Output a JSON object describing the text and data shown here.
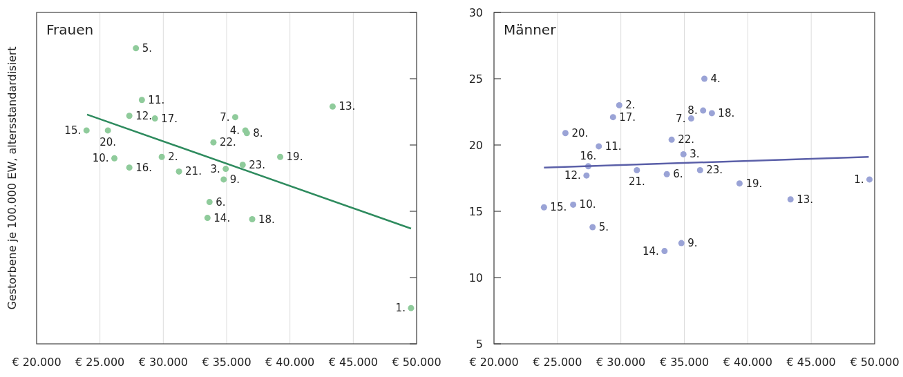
{
  "chart_data": [
    {
      "type": "scatter",
      "title": "Frauen",
      "ylabel": "Gestorbene je 100.000 EW, altersstandardisiert",
      "xlim": [
        20000,
        50000
      ],
      "ylim": [
        5,
        30
      ],
      "xticks": [
        {
          "value": 20000,
          "label": "€ 20.000"
        },
        {
          "value": 25000,
          "label": "€ 25.000"
        },
        {
          "value": 30000,
          "label": "€ 30.000"
        },
        {
          "value": 35000,
          "label": "€ 35.000"
        },
        {
          "value": 40000,
          "label": "€ 40.000"
        },
        {
          "value": 45000,
          "label": "€ 45.000"
        },
        {
          "value": 50000,
          "label": "€ 50.000"
        }
      ],
      "yticks": [
        5,
        10,
        15,
        20,
        25,
        30
      ],
      "tick_labels": "x",
      "grid": "x",
      "series": [
        {
          "marker": "circle",
          "color": "#8fcb9b",
          "x": [
            49560,
            29880,
            34930,
            36480,
            27840,
            33650,
            35680,
            36600,
            34770,
            26140,
            28310,
            27320,
            43370,
            33490,
            23940,
            27320,
            29340,
            37020,
            39230,
            25630,
            31240,
            33960,
            36270
          ],
          "values": [
            7.7,
            19.1,
            18.2,
            21.1,
            27.3,
            15.7,
            22.1,
            20.9,
            17.4,
            19.0,
            23.4,
            22.2,
            22.9,
            14.5,
            21.1,
            18.3,
            22.0,
            14.4,
            19.1,
            21.1,
            18.0,
            20.2,
            18.5
          ]
        },
        {
          "type": "line",
          "color": "#2e8b5e",
          "x": [
            23980,
            49560
          ],
          "values": [
            22.3,
            13.7
          ]
        }
      ],
      "annotations": [
        {
          "text": "1.",
          "x": 49560,
          "y": 7.7
        },
        {
          "text": "2.",
          "x": 29880,
          "y": 19.1
        },
        {
          "text": "3.",
          "x": 34930,
          "y": 18.2
        },
        {
          "text": "4.",
          "x": 36480,
          "y": 21.1
        },
        {
          "text": "5.",
          "x": 27840,
          "y": 27.3
        },
        {
          "text": "6.",
          "x": 33650,
          "y": 15.7
        },
        {
          "text": "7.",
          "x": 35680,
          "y": 22.1
        },
        {
          "text": "8.",
          "x": 36600,
          "y": 20.9
        },
        {
          "text": "9.",
          "x": 34770,
          "y": 17.4
        },
        {
          "text": "10.",
          "x": 26140,
          "y": 19.0
        },
        {
          "text": "11.",
          "x": 28310,
          "y": 23.4
        },
        {
          "text": "12.",
          "x": 27320,
          "y": 22.2
        },
        {
          "text": "13.",
          "x": 43370,
          "y": 22.9
        },
        {
          "text": "14.",
          "x": 33490,
          "y": 14.5
        },
        {
          "text": "15.",
          "x": 23940,
          "y": 21.1
        },
        {
          "text": "16.",
          "x": 27320,
          "y": 18.3
        },
        {
          "text": "17.",
          "x": 29340,
          "y": 22.0
        },
        {
          "text": "18.",
          "x": 37020,
          "y": 14.4
        },
        {
          "text": "19.",
          "x": 39230,
          "y": 19.1
        },
        {
          "text": "20.",
          "x": 25630,
          "y": 21.1
        },
        {
          "text": "21.",
          "x": 31240,
          "y": 18.0
        },
        {
          "text": "22.",
          "x": 33960,
          "y": 20.2
        },
        {
          "text": "23.",
          "x": 36270,
          "y": 18.5
        }
      ]
    },
    {
      "type": "scatter",
      "title": "Männer",
      "xlim": [
        20000,
        50000
      ],
      "ylim": [
        5,
        30
      ],
      "xticks": [
        {
          "value": 20000,
          "label": "€ 20.000"
        },
        {
          "value": 25000,
          "label": "€ 25.000"
        },
        {
          "value": 30000,
          "label": "€ 30.000"
        },
        {
          "value": 35000,
          "label": "€ 35.000"
        },
        {
          "value": 40000,
          "label": "€ 40.000"
        },
        {
          "value": 45000,
          "label": "€ 45.000"
        },
        {
          "value": 50000,
          "label": "€ 50.000"
        }
      ],
      "yticks": [
        5,
        10,
        15,
        20,
        25,
        30
      ],
      "grid": "x",
      "series": [
        {
          "marker": "circle",
          "color": "#9aa3d6",
          "x": [
            49590,
            29870,
            34930,
            36580,
            27770,
            33620,
            35540,
            36480,
            34770,
            26240,
            28260,
            27290,
            43370,
            33440,
            23940,
            27430,
            29380,
            37170,
            39350,
            25630,
            31260,
            34000,
            36240
          ],
          "values": [
            17.4,
            23.0,
            19.3,
            25.0,
            13.8,
            17.8,
            22.0,
            22.6,
            12.6,
            15.5,
            19.9,
            17.7,
            15.9,
            12.0,
            15.3,
            18.4,
            22.1,
            22.4,
            17.1,
            20.9,
            18.1,
            20.4,
            18.1
          ]
        },
        {
          "type": "line",
          "color": "#5a5fa8",
          "x": [
            23940,
            49530
          ],
          "values": [
            18.3,
            19.1
          ]
        }
      ],
      "annotations": [
        {
          "text": "1.",
          "x": 49590,
          "y": 17.4
        },
        {
          "text": "2.",
          "x": 29870,
          "y": 23.0
        },
        {
          "text": "3.",
          "x": 34930,
          "y": 19.3
        },
        {
          "text": "4.",
          "x": 36580,
          "y": 25.0
        },
        {
          "text": "5.",
          "x": 27770,
          "y": 13.8
        },
        {
          "text": "6.",
          "x": 33620,
          "y": 17.8
        },
        {
          "text": "7.",
          "x": 35540,
          "y": 22.0
        },
        {
          "text": "8.",
          "x": 36480,
          "y": 22.6
        },
        {
          "text": "9.",
          "x": 34770,
          "y": 12.6
        },
        {
          "text": "10.",
          "x": 26240,
          "y": 15.5
        },
        {
          "text": "11.",
          "x": 28260,
          "y": 19.9
        },
        {
          "text": "12.",
          "x": 27290,
          "y": 17.7
        },
        {
          "text": "13.",
          "x": 43370,
          "y": 15.9
        },
        {
          "text": "14.",
          "x": 33440,
          "y": 12.0
        },
        {
          "text": "15.",
          "x": 23940,
          "y": 15.3
        },
        {
          "text": "16.",
          "x": 27430,
          "y": 18.4
        },
        {
          "text": "17.",
          "x": 29380,
          "y": 22.1
        },
        {
          "text": "18.",
          "x": 37170,
          "y": 22.4
        },
        {
          "text": "19.",
          "x": 39350,
          "y": 17.1
        },
        {
          "text": "20.",
          "x": 25630,
          "y": 20.9
        },
        {
          "text": "21.",
          "x": 31260,
          "y": 18.1
        },
        {
          "text": "22.",
          "x": 34000,
          "y": 20.4
        },
        {
          "text": "23.",
          "x": 36240,
          "y": 18.1
        }
      ]
    }
  ]
}
